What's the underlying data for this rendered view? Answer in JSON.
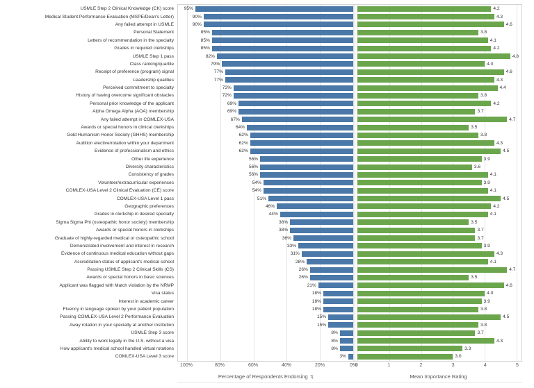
{
  "icons": {
    "sort": "⇅"
  },
  "chart_data": {
    "type": "bar",
    "variant": "diverging-horizontal",
    "title": "",
    "categories": [
      "USMLE Step 2 Clinical Knowledge (CK) score",
      "Medical Student Performance Evaluation (MSPE/Dean's Letter)",
      "Any failed attempt in USMLE",
      "Personal Statement",
      "Letters of recommendation in the specialty",
      "Grades in required clerkships",
      "USMLE Step 1 pass",
      "Class ranking/quartile",
      "Receipt of preference (program) signal",
      "Leadership qualities",
      "Perceived commitment to specialty",
      "History of having overcome significant obstacles",
      "Personal prior knowledge of the applicant",
      "Alpha Omega Alpha (AOA) membership",
      "Any failed attempt in COMLEX-USA",
      "Awards or special honors in clinical clerkships",
      "Gold Humanism Honor Society (GHHS) membership",
      "Audition elective/rotation within your department",
      "Evidence of professionalism and ethics",
      "Other life experience",
      "Diversity characteristics",
      "Consistency of grades",
      "Volunteer/extracurricular experiences",
      "COMLEX-USA Level 2 Clinical Evaluation (CE) score",
      "COMLEX-USA Level 1 pass",
      "Geographic preferences",
      "Grades in clerkship in desired specialty",
      "Sigma Sigma Phi (osteopathic honor society) membership",
      "Awards or special honors in clerkships",
      "Graduate of highly-regarded medical or osteopathic school",
      "Demonstrated involvement and interest in research",
      "Evidence of continuous medical education without gaps",
      "Accreditation status of applicant's medical school",
      "Passing USMLE Step 2 Clinical Skills (CS)",
      "Awards or special honors in basic sciences",
      "Applicant was flagged with Match violation by the NRMP",
      "Visa status",
      "Interest in academic career",
      "Fluency in language spoken by your patient population",
      "Passing COMLEX-USA Level 2 Performance Evaluation",
      "Away rotation in your specialty at another institution",
      "USMLE Step 3 score",
      "Ability to work legally in the U.S. without a visa",
      "How applicant's medical school handled virtual rotations",
      "COMLEX-USA Level 3 score"
    ],
    "series": [
      {
        "name": "Percentage of Respondents Endorsing",
        "unit": "%",
        "color": "#4a78a8",
        "values": [
          95,
          90,
          90,
          85,
          85,
          85,
          82,
          79,
          77,
          77,
          72,
          72,
          69,
          69,
          67,
          64,
          62,
          62,
          62,
          56,
          56,
          56,
          54,
          54,
          51,
          46,
          44,
          38,
          38,
          36,
          33,
          31,
          28,
          26,
          26,
          21,
          18,
          18,
          18,
          15,
          15,
          8,
          8,
          8,
          3
        ]
      },
      {
        "name": "Mean Importance Rating",
        "color": "#6ba64d",
        "values": [
          4.2,
          4.3,
          4.6,
          3.8,
          4.1,
          4.2,
          4.8,
          4.0,
          4.6,
          4.3,
          4.4,
          3.8,
          4.2,
          3.7,
          4.7,
          3.5,
          3.8,
          4.3,
          4.5,
          3.9,
          3.6,
          4.1,
          3.9,
          4.1,
          4.5,
          4.2,
          4.1,
          3.5,
          3.7,
          3.7,
          3.9,
          4.3,
          4.1,
          4.7,
          3.5,
          4.6,
          4.0,
          3.9,
          3.8,
          4.5,
          3.8,
          3.7,
          4.3,
          3.3,
          3.0
        ]
      }
    ],
    "left_axis": {
      "label": "Percentage of Respondents Endorsing",
      "ticks": [
        "100%",
        "80%",
        "60%",
        "40%",
        "20%",
        "0%"
      ],
      "min": 0,
      "max": 100,
      "direction": "reversed"
    },
    "right_axis": {
      "label": "Mean Importance Rating",
      "ticks": [
        "0",
        "1",
        "2",
        "3",
        "4",
        "5"
      ],
      "min": 0,
      "max": 5
    },
    "grid": true,
    "value_labels": true
  }
}
